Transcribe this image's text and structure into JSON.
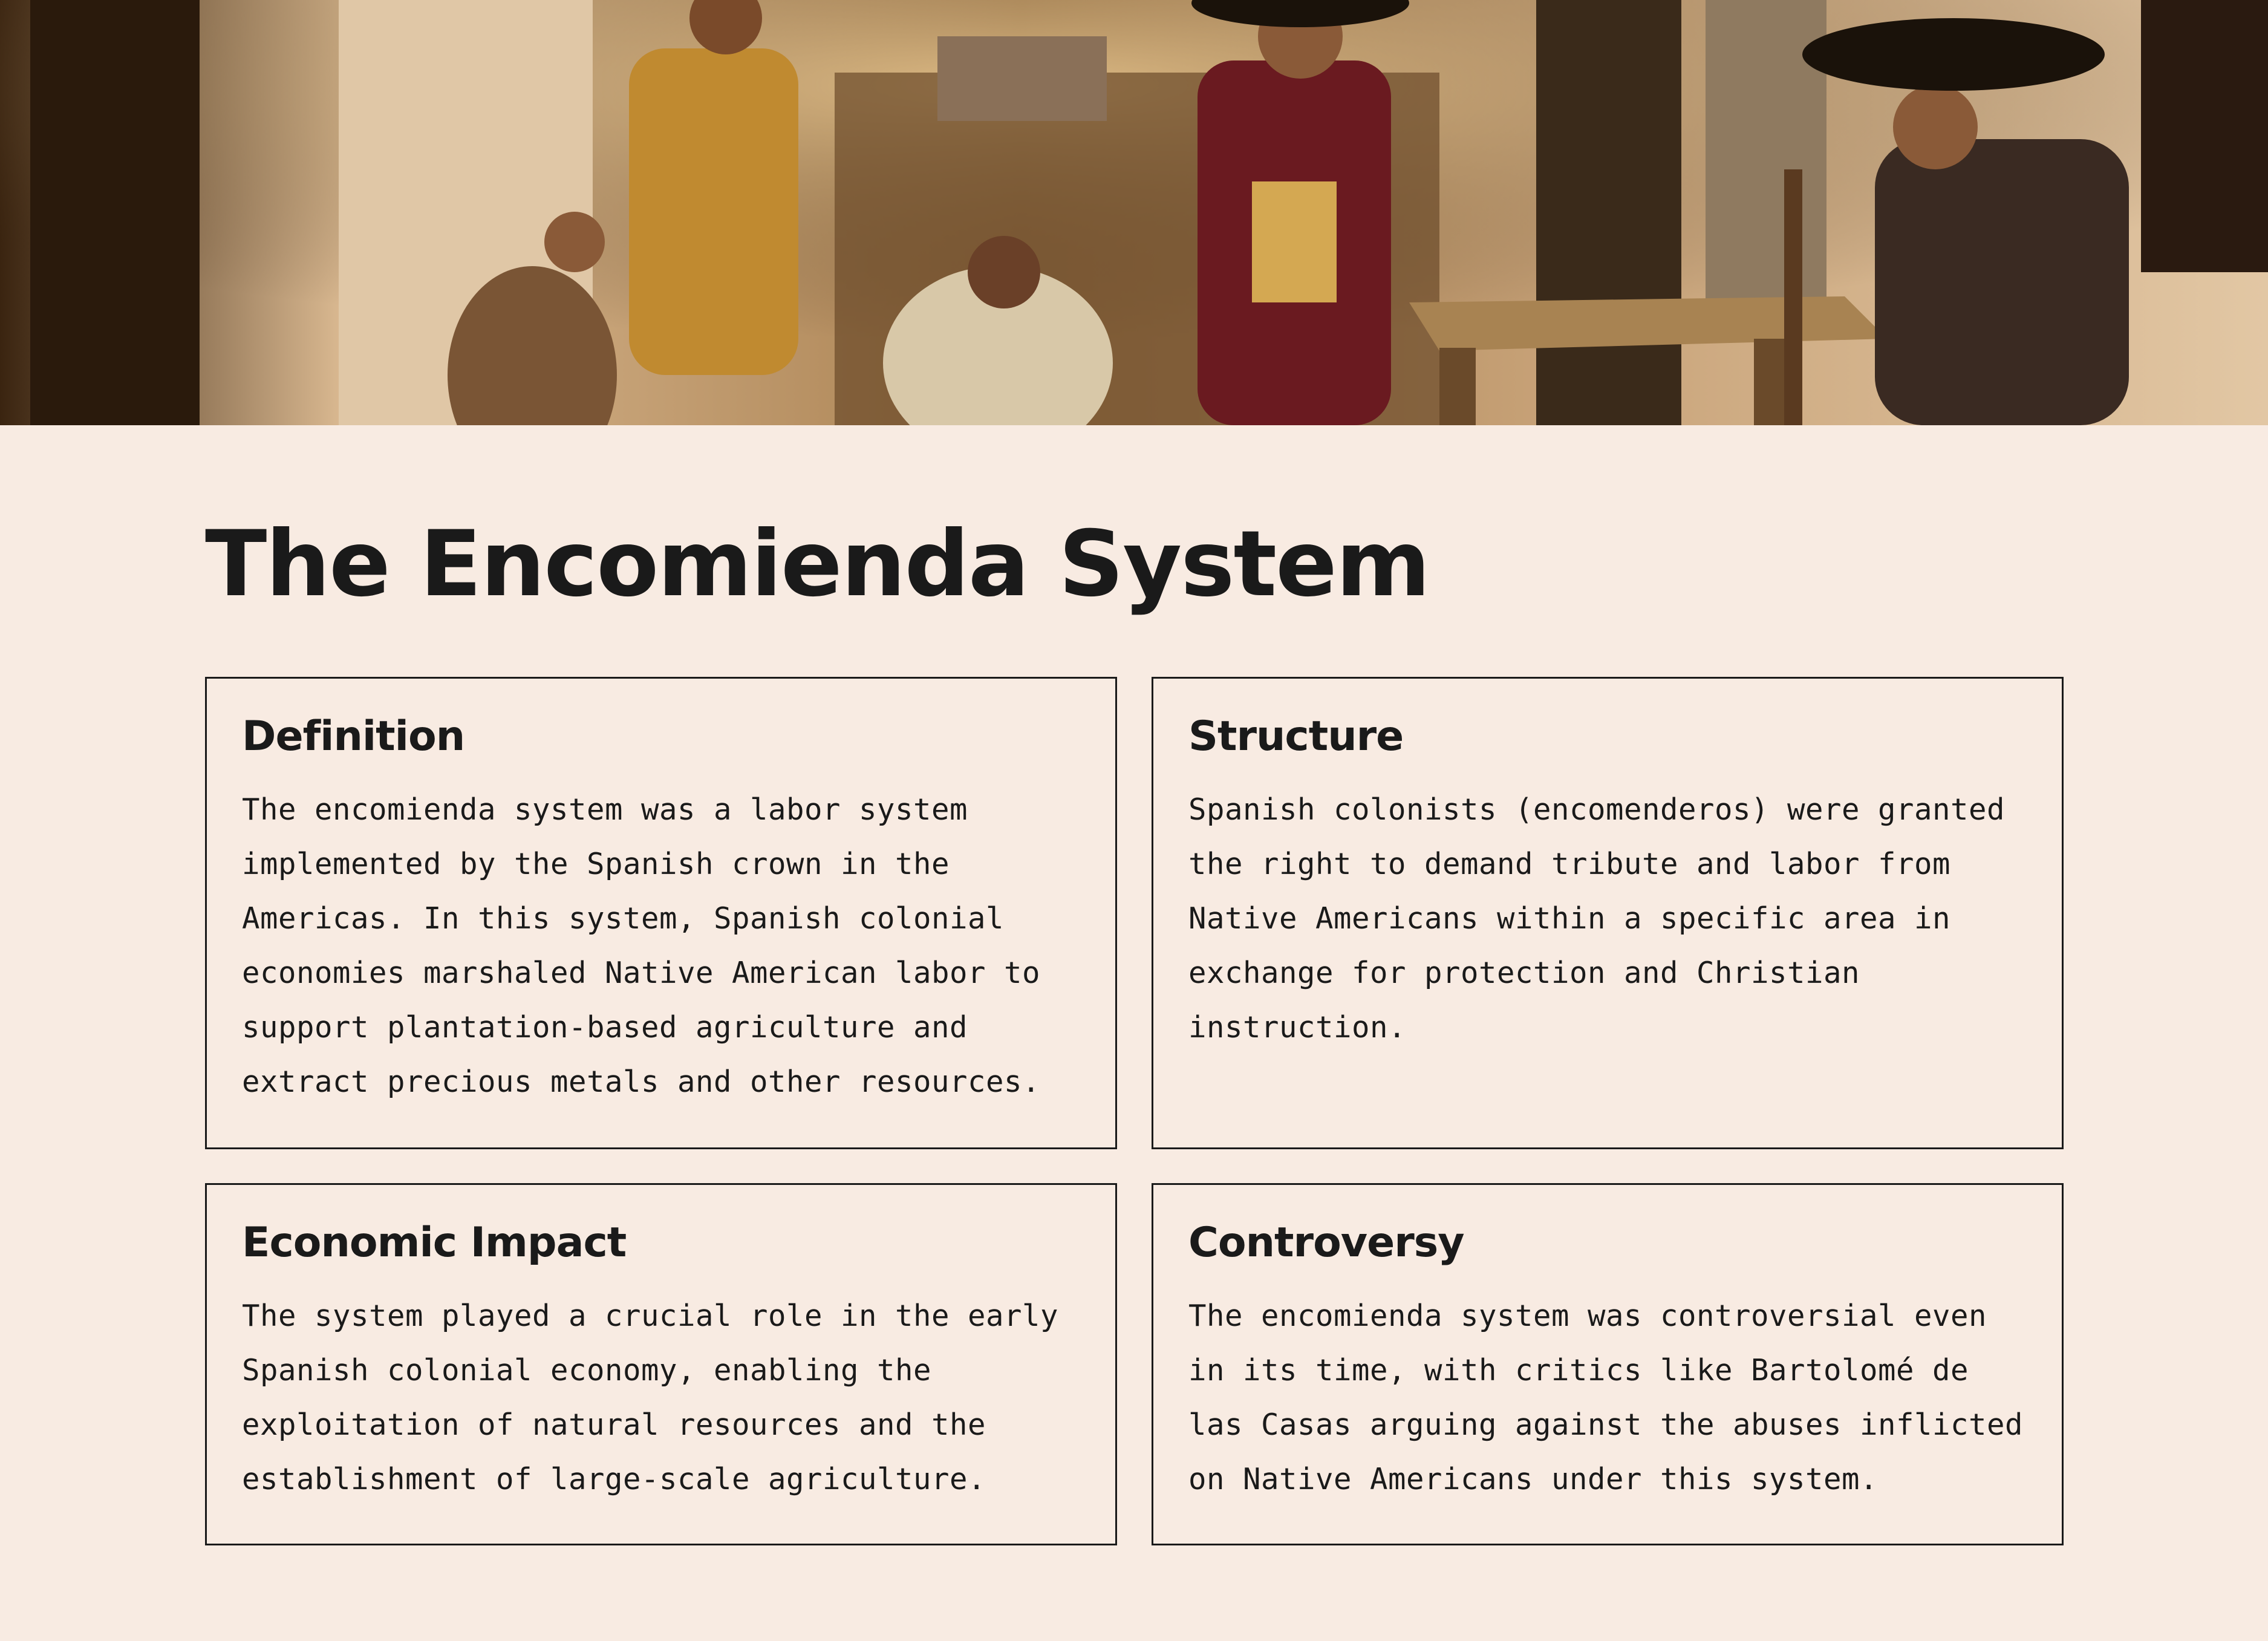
{
  "hero": {
    "image_description_icon": "colonial-scene-illustration"
  },
  "page": {
    "title": "The Encomienda System"
  },
  "cards": {
    "definition": {
      "heading": "Definition",
      "body": "The encomienda system was a labor system implemented by the Spanish crown in the Americas. In this system, Spanish colonial economies marshaled Native American labor to support plantation-based agriculture and extract precious metals and other resources."
    },
    "structure": {
      "heading": "Structure",
      "body": "Spanish colonists (encomenderos) were granted the right to demand tribute and labor from Native Americans within a specific area in exchange for protection and Christian instruction."
    },
    "economic": {
      "heading": "Economic Impact",
      "body": "The system played a crucial role in the early Spanish colonial economy, enabling the exploitation of natural resources and the establishment of large-scale agriculture."
    },
    "controversy": {
      "heading": "Controversy",
      "body": "The encomienda system was controversial even in its time, with critics like Bartolomé de las Casas arguing against the abuses inflicted on Native Americans under this system."
    }
  },
  "colors": {
    "background": "#f8ebe2",
    "text": "#1a1a1a",
    "border": "#1a1a1a"
  }
}
